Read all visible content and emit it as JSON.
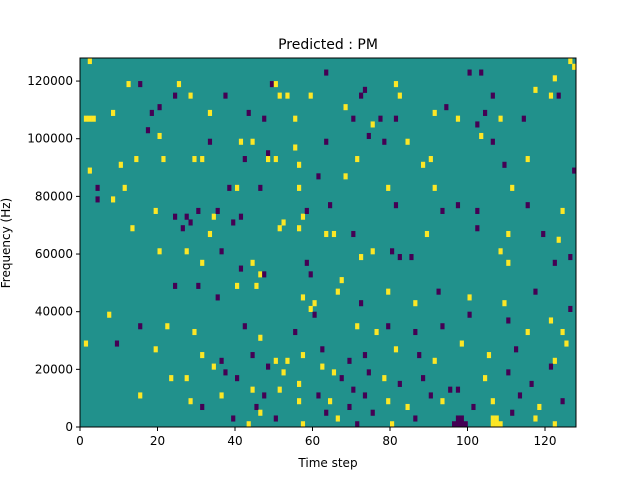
{
  "chart_data": {
    "type": "heatmap",
    "title": "Predicted : PM",
    "xlabel": "Time step",
    "ylabel": "Frequency (Hz)",
    "xlim": [
      0,
      128
    ],
    "ylim": [
      0,
      128000
    ],
    "xticks": [
      0,
      20,
      40,
      60,
      80,
      100,
      120
    ],
    "yticks": [
      0,
      20000,
      40000,
      60000,
      80000,
      100000,
      120000
    ],
    "ytick_labels": [
      "0",
      "20000",
      "40000",
      "60000",
      "80000",
      "100000",
      "120000"
    ],
    "n_freq_bins": 64,
    "bin_height_hz": 2000,
    "colors": {
      "background": "#21918c",
      "high": "#fde725",
      "low": "#440154"
    },
    "background_value": 0,
    "cells": [
      [
        2,
        63,
        1
      ],
      [
        2,
        53,
        1
      ],
      [
        1,
        53,
        1
      ],
      [
        3,
        53,
        1
      ],
      [
        12,
        59,
        1
      ],
      [
        15,
        59,
        -1
      ],
      [
        25,
        59,
        1
      ],
      [
        24,
        57,
        -1
      ],
      [
        28,
        57,
        1
      ],
      [
        37,
        57,
        -1
      ],
      [
        49,
        59,
        -1
      ],
      [
        50,
        59,
        1
      ],
      [
        53,
        57,
        1
      ],
      [
        51,
        57,
        1
      ],
      [
        59,
        57,
        1
      ],
      [
        63,
        61,
        -1
      ],
      [
        72,
        57,
        -1
      ],
      [
        73,
        58,
        -1
      ],
      [
        81,
        59,
        1
      ],
      [
        82,
        57,
        1
      ],
      [
        91,
        54,
        1
      ],
      [
        94,
        55,
        -1
      ],
      [
        100,
        61,
        -1
      ],
      [
        103,
        61,
        -1
      ],
      [
        106,
        57,
        -1
      ],
      [
        104,
        54,
        -1
      ],
      [
        117,
        58,
        1
      ],
      [
        121,
        57,
        1
      ],
      [
        123,
        57,
        -1
      ],
      [
        122,
        60,
        1
      ],
      [
        127,
        62,
        1
      ],
      [
        126,
        63,
        1
      ],
      [
        8,
        54,
        1
      ],
      [
        18,
        54,
        -1
      ],
      [
        20,
        55,
        -1
      ],
      [
        33,
        54,
        1
      ],
      [
        43,
        54,
        -1
      ],
      [
        47,
        53,
        -1
      ],
      [
        55,
        53,
        1
      ],
      [
        68,
        55,
        1
      ],
      [
        70,
        53,
        -1
      ],
      [
        75,
        52,
        1
      ],
      [
        77,
        53,
        -1
      ],
      [
        81,
        53,
        -1
      ],
      [
        97,
        53,
        1
      ],
      [
        102,
        52,
        -1
      ],
      [
        108,
        53,
        1
      ],
      [
        114,
        53,
        -1
      ],
      [
        17,
        51,
        -1
      ],
      [
        20,
        50,
        1
      ],
      [
        33,
        49,
        -1
      ],
      [
        41,
        49,
        1
      ],
      [
        44,
        49,
        1
      ],
      [
        48,
        47,
        -1
      ],
      [
        55,
        48,
        1
      ],
      [
        63,
        49,
        -1
      ],
      [
        74,
        50,
        -1
      ],
      [
        78,
        49,
        -1
      ],
      [
        84,
        49,
        1
      ],
      [
        103,
        50,
        1
      ],
      [
        106,
        49,
        -1
      ],
      [
        10,
        45,
        1
      ],
      [
        14,
        46,
        1
      ],
      [
        21,
        46,
        1
      ],
      [
        29,
        46,
        1
      ],
      [
        31,
        46,
        1
      ],
      [
        42,
        46,
        -1
      ],
      [
        48,
        46,
        1
      ],
      [
        50,
        46,
        1
      ],
      [
        56,
        45,
        1
      ],
      [
        71,
        46,
        1
      ],
      [
        88,
        45,
        1
      ],
      [
        90,
        46,
        1
      ],
      [
        109,
        45,
        -1
      ],
      [
        115,
        46,
        1
      ],
      [
        127,
        44,
        -1
      ],
      [
        2,
        44,
        1
      ],
      [
        4,
        41,
        -1
      ],
      [
        11,
        41,
        1
      ],
      [
        38,
        41,
        -1
      ],
      [
        40,
        41,
        1
      ],
      [
        46,
        41,
        -1
      ],
      [
        56,
        41,
        1
      ],
      [
        61,
        43,
        -1
      ],
      [
        68,
        43,
        1
      ],
      [
        79,
        41,
        1
      ],
      [
        91,
        41,
        1
      ],
      [
        111,
        41,
        1
      ],
      [
        4,
        39,
        -1
      ],
      [
        8,
        39,
        1
      ],
      [
        19,
        37,
        1
      ],
      [
        24,
        36,
        -1
      ],
      [
        27,
        36,
        -1
      ],
      [
        30,
        37,
        -1
      ],
      [
        34,
        36,
        1
      ],
      [
        35,
        37,
        -1
      ],
      [
        41,
        36,
        -1
      ],
      [
        52,
        35,
        1
      ],
      [
        57,
        36,
        1
      ],
      [
        58,
        37,
        -1
      ],
      [
        64,
        38,
        -1
      ],
      [
        81,
        38,
        -1
      ],
      [
        93,
        37,
        -1
      ],
      [
        97,
        38,
        -1
      ],
      [
        102,
        37,
        -1
      ],
      [
        115,
        38,
        -1
      ],
      [
        124,
        37,
        1
      ],
      [
        13,
        34,
        1
      ],
      [
        26,
        34,
        -1
      ],
      [
        28,
        35,
        -1
      ],
      [
        33,
        33,
        1
      ],
      [
        39,
        35,
        -1
      ],
      [
        51,
        34,
        1
      ],
      [
        56,
        34,
        1
      ],
      [
        63,
        33,
        1
      ],
      [
        65,
        33,
        1
      ],
      [
        70,
        33,
        -1
      ],
      [
        89,
        33,
        1
      ],
      [
        102,
        34,
        -1
      ],
      [
        110,
        33,
        1
      ],
      [
        119,
        33,
        -1
      ],
      [
        123,
        32,
        1
      ],
      [
        20,
        30,
        1
      ],
      [
        27,
        30,
        1
      ],
      [
        31,
        28,
        1
      ],
      [
        36,
        30,
        -1
      ],
      [
        44,
        28,
        1
      ],
      [
        41,
        27,
        -1
      ],
      [
        46,
        26,
        1
      ],
      [
        58,
        28,
        -1
      ],
      [
        59,
        26,
        -1
      ],
      [
        67,
        25,
        1
      ],
      [
        72,
        29,
        1
      ],
      [
        75,
        30,
        1
      ],
      [
        80,
        30,
        -1
      ],
      [
        82,
        29,
        -1
      ],
      [
        85,
        29,
        -1
      ],
      [
        108,
        30,
        1
      ],
      [
        110,
        28,
        1
      ],
      [
        122,
        28,
        -1
      ],
      [
        126,
        29,
        -1
      ],
      [
        24,
        24,
        -1
      ],
      [
        30,
        24,
        -1
      ],
      [
        35,
        22,
        -1
      ],
      [
        40,
        24,
        1
      ],
      [
        45,
        24,
        1
      ],
      [
        47,
        26,
        -1
      ],
      [
        57,
        22,
        1
      ],
      [
        59,
        20,
        1
      ],
      [
        60,
        21,
        1
      ],
      [
        66,
        23,
        1
      ],
      [
        72,
        21,
        -1
      ],
      [
        79,
        23,
        1
      ],
      [
        86,
        21,
        1
      ],
      [
        92,
        23,
        -1
      ],
      [
        100,
        22,
        1
      ],
      [
        109,
        21,
        1
      ],
      [
        117,
        23,
        -1
      ],
      [
        126,
        20,
        -1
      ],
      [
        7,
        19,
        1
      ],
      [
        15,
        17,
        -1
      ],
      [
        22,
        17,
        1
      ],
      [
        29,
        16,
        1
      ],
      [
        42,
        17,
        -1
      ],
      [
        46,
        15,
        1
      ],
      [
        55,
        16,
        -1
      ],
      [
        60,
        19,
        -1
      ],
      [
        71,
        17,
        1
      ],
      [
        76,
        16,
        1
      ],
      [
        79,
        17,
        -1
      ],
      [
        86,
        16,
        -1
      ],
      [
        93,
        17,
        -1
      ],
      [
        100,
        19,
        -1
      ],
      [
        110,
        18,
        -1
      ],
      [
        115,
        16,
        1
      ],
      [
        121,
        18,
        1
      ],
      [
        124,
        16,
        1
      ],
      [
        1,
        14,
        1
      ],
      [
        9,
        14,
        -1
      ],
      [
        19,
        13,
        1
      ],
      [
        31,
        12,
        1
      ],
      [
        36,
        11,
        -1
      ],
      [
        44,
        12,
        -1
      ],
      [
        50,
        11,
        1
      ],
      [
        53,
        11,
        1
      ],
      [
        57,
        12,
        1
      ],
      [
        62,
        13,
        -1
      ],
      [
        69,
        11,
        -1
      ],
      [
        73,
        12,
        -1
      ],
      [
        81,
        13,
        1
      ],
      [
        87,
        12,
        -1
      ],
      [
        91,
        11,
        1
      ],
      [
        98,
        14,
        1
      ],
      [
        105,
        12,
        1
      ],
      [
        112,
        13,
        -1
      ],
      [
        122,
        11,
        1
      ],
      [
        125,
        14,
        1
      ],
      [
        23,
        8,
        1
      ],
      [
        27,
        8,
        1
      ],
      [
        34,
        10,
        1
      ],
      [
        37,
        9,
        -1
      ],
      [
        40,
        8,
        -1
      ],
      [
        44,
        6,
        1
      ],
      [
        48,
        10,
        -1
      ],
      [
        52,
        9,
        1
      ],
      [
        56,
        7,
        1
      ],
      [
        62,
        10,
        1
      ],
      [
        65,
        9,
        1
      ],
      [
        67,
        8,
        -1
      ],
      [
        70,
        6,
        -1
      ],
      [
        74,
        9,
        -1
      ],
      [
        78,
        8,
        1
      ],
      [
        82,
        7,
        -1
      ],
      [
        88,
        8,
        -1
      ],
      [
        95,
        6,
        -1
      ],
      [
        104,
        8,
        1
      ],
      [
        110,
        9,
        -1
      ],
      [
        116,
        7,
        -1
      ],
      [
        121,
        10,
        -1
      ],
      [
        15,
        5,
        1
      ],
      [
        28,
        4,
        1
      ],
      [
        31,
        3,
        -1
      ],
      [
        36,
        5,
        1
      ],
      [
        45,
        3,
        -1
      ],
      [
        47,
        5,
        -1
      ],
      [
        51,
        6,
        1
      ],
      [
        56,
        4,
        1
      ],
      [
        61,
        5,
        -1
      ],
      [
        64,
        4,
        1
      ],
      [
        69,
        3,
        -1
      ],
      [
        73,
        5,
        -1
      ],
      [
        79,
        4,
        1
      ],
      [
        84,
        3,
        1
      ],
      [
        90,
        5,
        -1
      ],
      [
        93,
        4,
        1
      ],
      [
        97,
        6,
        -1
      ],
      [
        101,
        3,
        -1
      ],
      [
        106,
        4,
        1
      ],
      [
        113,
        5,
        -1
      ],
      [
        118,
        3,
        1
      ],
      [
        124,
        4,
        -1
      ],
      [
        39,
        1,
        -1
      ],
      [
        43,
        0,
        1
      ],
      [
        46,
        2,
        1
      ],
      [
        50,
        1,
        -1
      ],
      [
        57,
        0,
        1
      ],
      [
        63,
        2,
        -1
      ],
      [
        66,
        1,
        1
      ],
      [
        71,
        0,
        -1
      ],
      [
        75,
        2,
        -1
      ],
      [
        80,
        0,
        1
      ],
      [
        86,
        1,
        -1
      ],
      [
        96,
        0,
        -1
      ],
      [
        97,
        0,
        -1
      ],
      [
        98,
        0,
        -1
      ],
      [
        99,
        0,
        -1
      ],
      [
        97,
        1,
        -1
      ],
      [
        98,
        1,
        -1
      ],
      [
        106,
        0,
        1
      ],
      [
        107,
        0,
        1
      ],
      [
        108,
        0,
        1
      ],
      [
        106,
        1,
        1
      ],
      [
        107,
        1,
        1
      ],
      [
        111,
        2,
        -1
      ],
      [
        117,
        1,
        1
      ],
      [
        122,
        0,
        1
      ]
    ]
  }
}
